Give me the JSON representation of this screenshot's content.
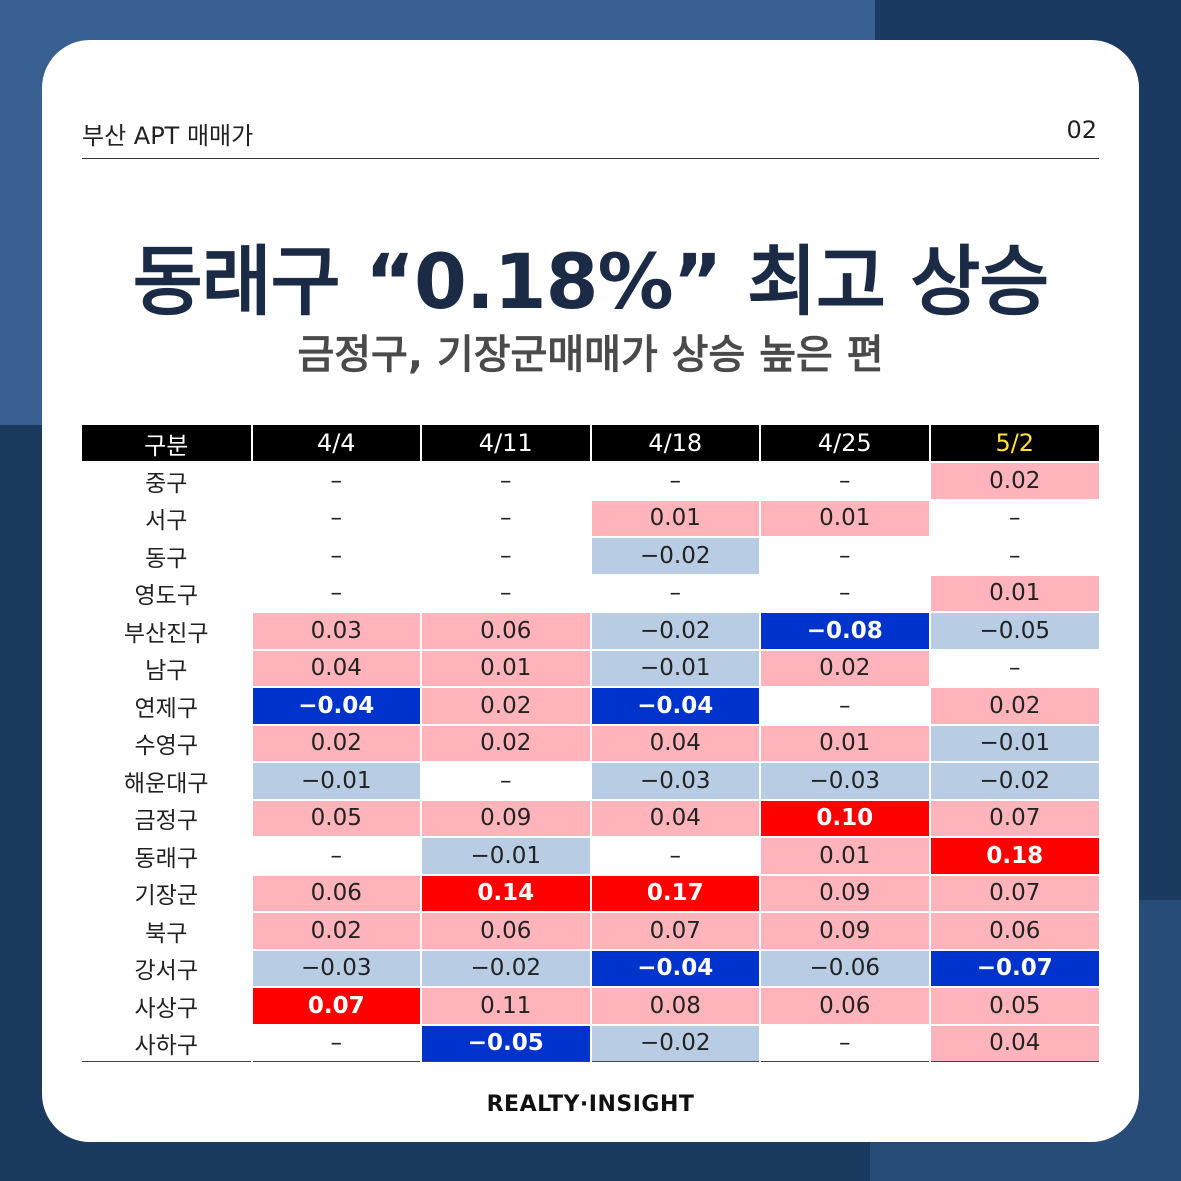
{
  "header": {
    "left": "부산 APT 매매가",
    "right": "02"
  },
  "title": "동래구 “0.18%” 최고 상승",
  "subtitle": "금정구, 기장군매매가 상승 높은 편",
  "table": {
    "columns": [
      "구분",
      "4/4",
      "4/11",
      "4/18",
      "4/25",
      "5/2"
    ],
    "highlight_column": "5/2",
    "rows": [
      {
        "name": "중구",
        "values": [
          "-",
          "-",
          "-",
          "-",
          "0.02"
        ]
      },
      {
        "name": "서구",
        "values": [
          "-",
          "-",
          "0.01",
          "0.01",
          "-"
        ]
      },
      {
        "name": "동구",
        "values": [
          "-",
          "-",
          "-0.02",
          "-",
          "-"
        ]
      },
      {
        "name": "영도구",
        "values": [
          "-",
          "-",
          "-",
          "-",
          "0.01"
        ]
      },
      {
        "name": "부산진구",
        "values": [
          "0.03",
          "0.06",
          "-0.02",
          "-0.08",
          "-0.05"
        ]
      },
      {
        "name": "남구",
        "values": [
          "0.04",
          "0.01",
          "-0.01",
          "0.02",
          "-"
        ]
      },
      {
        "name": "연제구",
        "values": [
          "-0.04",
          "0.02",
          "-0.04",
          "-",
          "0.02"
        ]
      },
      {
        "name": "수영구",
        "values": [
          "0.02",
          "0.02",
          "0.04",
          "0.01",
          "-0.01"
        ]
      },
      {
        "name": "해운대구",
        "values": [
          "-0.01",
          "-",
          "-0.03",
          "-0.03",
          "-0.02"
        ]
      },
      {
        "name": "금정구",
        "values": [
          "0.05",
          "0.09",
          "0.04",
          "0.10",
          "0.07"
        ]
      },
      {
        "name": "동래구",
        "values": [
          "-",
          "-0.01",
          "-",
          "0.01",
          "0.18"
        ]
      },
      {
        "name": "기장군",
        "values": [
          "0.06",
          "0.14",
          "0.17",
          "0.09",
          "0.07"
        ]
      },
      {
        "name": "북구",
        "values": [
          "0.02",
          "0.06",
          "0.07",
          "0.09",
          "0.06"
        ]
      },
      {
        "name": "강서구",
        "values": [
          "-0.03",
          "-0.02",
          "-0.04",
          "-0.06",
          "-0.07"
        ]
      },
      {
        "name": "사상구",
        "values": [
          "0.07",
          "0.11",
          "0.08",
          "0.06",
          "0.05"
        ]
      },
      {
        "name": "사하구",
        "values": [
          "-",
          "-0.05",
          "-0.02",
          "-",
          "0.04"
        ]
      }
    ],
    "strong_cells": [
      [
        4,
        3
      ],
      [
        6,
        0
      ],
      [
        6,
        2
      ],
      [
        9,
        3
      ],
      [
        10,
        4
      ],
      [
        11,
        1
      ],
      [
        11,
        2
      ],
      [
        13,
        2
      ],
      [
        13,
        4
      ],
      [
        14,
        0
      ],
      [
        15,
        1
      ]
    ],
    "colors": {
      "rise": "#ffb3ba",
      "rise_strong": "#ff0000",
      "fall": "#b8cce4",
      "fall_strong": "#0033cc",
      "header_bg": "#000000",
      "highlight_text": "#ffe03a"
    }
  },
  "footer": "REALTY·INSIGHT"
}
